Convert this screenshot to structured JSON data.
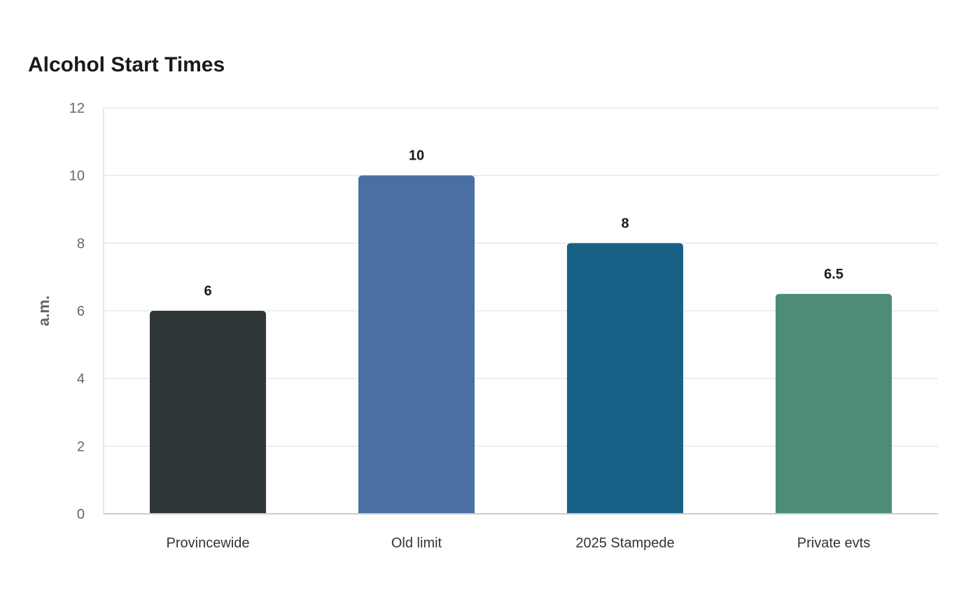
{
  "chart_data": {
    "type": "bar",
    "title": "Alcohol Start Times",
    "xlabel": "",
    "ylabel": "a.m.",
    "categories": [
      "Provincewide",
      "Old limit",
      "2025 Stampede",
      "Private evts"
    ],
    "values": [
      6,
      10,
      8,
      6.5
    ],
    "value_labels": [
      "6",
      "10",
      "8",
      "6.5"
    ],
    "colors": [
      "#2e3638",
      "#4a6fa3",
      "#186186",
      "#4e8c7a"
    ],
    "ylim": [
      0,
      12
    ],
    "yticks": [
      0,
      2,
      4,
      6,
      8,
      10,
      12
    ],
    "grid": true,
    "legend": "none"
  }
}
